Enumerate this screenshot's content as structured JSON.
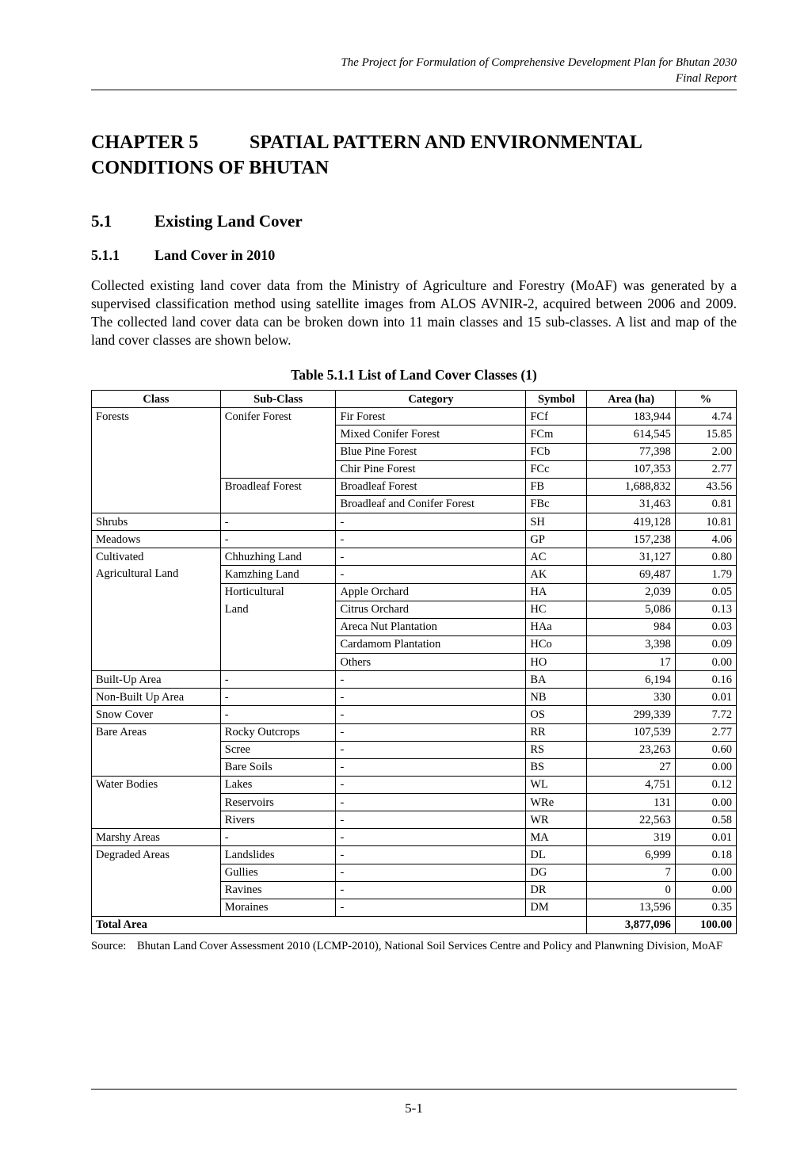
{
  "header": {
    "line1": "The Project for Formulation of Comprehensive Development Plan for Bhutan 2030",
    "line2": "Final Report"
  },
  "chapter": {
    "label": "CHAPTER 5",
    "title": "SPATIAL PATTERN AND ENVIRONMENTAL CONDITIONS OF BHUTAN"
  },
  "section": {
    "num": "5.1",
    "title": "Existing Land Cover"
  },
  "subsection": {
    "num": "5.1.1",
    "title": "Land Cover in 2010"
  },
  "paragraph": "Collected existing land cover data from the Ministry of Agriculture and Forestry (MoAF) was generated by a supervised classification method using satellite images from ALOS AVNIR-2, acquired between 2006 and 2009. The collected land cover data can be broken down into 11 main classes and 15 sub-classes. A list and map of the land cover classes are shown below.",
  "table": {
    "caption": "Table 5.1.1    List of Land Cover Classes (1)",
    "columns": [
      "Class",
      "Sub-Class",
      "Category",
      "Symbol",
      "Area (ha)",
      "%"
    ],
    "col_widths": [
      "19%",
      "17%",
      "28%",
      "9%",
      "13%",
      "9%"
    ],
    "rows": [
      [
        "Forests",
        "Conifer Forest",
        "Fir Forest",
        "FCf",
        "183,944",
        "4.74",
        "open-bottom",
        "open-bottom"
      ],
      [
        "",
        "",
        "Mixed Conifer Forest",
        "FCm",
        "614,545",
        "15.85",
        "open-both",
        "open-both"
      ],
      [
        "",
        "",
        "Blue Pine Forest",
        "FCb",
        "77,398",
        "2.00",
        "open-both",
        "open-both"
      ],
      [
        "",
        "",
        "Chir Pine Forest",
        "FCc",
        "107,353",
        "2.77",
        "open-both",
        "open-top"
      ],
      [
        "",
        "Broadleaf Forest",
        "Broadleaf Forest",
        "FB",
        "1,688,832",
        "43.56",
        "open-both",
        "open-bottom"
      ],
      [
        "",
        "",
        "Broadleaf and Conifer Forest",
        "FBc",
        "31,463",
        "0.81",
        "open-top",
        "open-top"
      ],
      [
        "Shrubs",
        "-",
        "-",
        "SH",
        "419,128",
        "10.81",
        "",
        ""
      ],
      [
        "Meadows",
        "-",
        "-",
        "GP",
        "157,238",
        "4.06",
        "",
        ""
      ],
      [
        "Cultivated",
        "Chhuzhing Land",
        "-",
        "AC",
        "31,127",
        "0.80",
        "open-bottom",
        ""
      ],
      [
        "Agricultural Land",
        "Kamzhing Land",
        "-",
        "AK",
        "69,487",
        "1.79",
        "open-both",
        ""
      ],
      [
        "",
        "Horticultural",
        "Apple Orchard",
        "HA",
        "2,039",
        "0.05",
        "open-both",
        "open-bottom"
      ],
      [
        "",
        "Land",
        "Citrus Orchard",
        "HC",
        "5,086",
        "0.13",
        "open-both",
        "open-both"
      ],
      [
        "",
        "",
        "Areca Nut Plantation",
        "HAa",
        "984",
        "0.03",
        "open-both",
        "open-both"
      ],
      [
        "",
        "",
        "Cardamom Plantation",
        "HCo",
        "3,398",
        "0.09",
        "open-both",
        "open-both"
      ],
      [
        "",
        "",
        "Others",
        "HO",
        "17",
        "0.00",
        "open-top",
        "open-top"
      ],
      [
        "Built-Up Area",
        "-",
        "-",
        "BA",
        "6,194",
        "0.16",
        "",
        ""
      ],
      [
        "Non-Built Up Area",
        "-",
        "-",
        "NB",
        "330",
        "0.01",
        "",
        ""
      ],
      [
        "Snow Cover",
        "-",
        "-",
        "OS",
        "299,339",
        "7.72",
        "",
        ""
      ],
      [
        "Bare Areas",
        "Rocky Outcrops",
        "-",
        "RR",
        "107,539",
        "2.77",
        "open-bottom",
        ""
      ],
      [
        "",
        "Scree",
        "-",
        "RS",
        "23,263",
        "0.60",
        "open-both",
        ""
      ],
      [
        "",
        "Bare Soils",
        "-",
        "BS",
        "27",
        "0.00",
        "open-top",
        ""
      ],
      [
        "Water Bodies",
        "Lakes",
        "-",
        "WL",
        "4,751",
        "0.12",
        "open-bottom",
        ""
      ],
      [
        "",
        "Reservoirs",
        "-",
        "WRe",
        "131",
        "0.00",
        "open-both",
        ""
      ],
      [
        "",
        "Rivers",
        "-",
        "WR",
        "22,563",
        "0.58",
        "open-top",
        ""
      ],
      [
        "Marshy Areas",
        "-",
        "-",
        "MA",
        "319",
        "0.01",
        "",
        ""
      ],
      [
        "Degraded Areas",
        "Landslides",
        "-",
        "DL",
        "6,999",
        "0.18",
        "open-bottom",
        ""
      ],
      [
        "",
        "Gullies",
        "-",
        "DG",
        "7",
        "0.00",
        "open-both",
        ""
      ],
      [
        "",
        "Ravines",
        "-",
        "DR",
        "0",
        "0.00",
        "open-both",
        ""
      ],
      [
        "",
        "Moraines",
        "-",
        "DM",
        "13,596",
        "0.35",
        "open-top",
        ""
      ]
    ],
    "total_row": [
      "Total Area",
      "3,877,096",
      "100.00"
    ]
  },
  "source": {
    "label": "Source:",
    "text": "Bhutan Land Cover Assessment 2010 (LCMP-2010), National Soil Services Centre and Policy and Planwning Division, MoAF"
  },
  "page_number": "5-1"
}
